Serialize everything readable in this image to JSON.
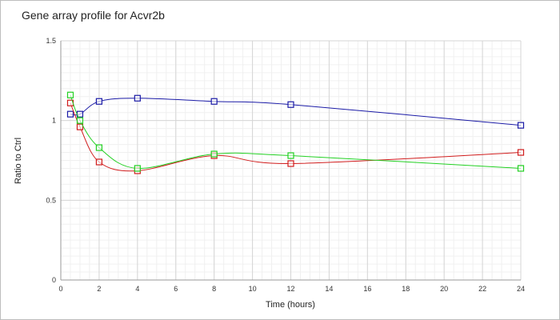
{
  "chart_data": {
    "type": "line",
    "title": "Gene array profile for Acvr2b",
    "xlabel": "Time (hours)",
    "ylabel": "Ratio to Ctrl",
    "xlim": [
      0,
      24
    ],
    "ylim": [
      0,
      1.5
    ],
    "x_ticks": [
      "0",
      "2",
      "4",
      "6",
      "8",
      "10",
      "12",
      "14",
      "16",
      "18",
      "20",
      "22",
      "24"
    ],
    "y_ticks": [
      "0",
      "0.5",
      "1",
      "1.5"
    ],
    "grid": true,
    "series": [
      {
        "color": "#1a1aa6",
        "points": [
          [
            0.5,
            1.04
          ],
          [
            1,
            1.04
          ],
          [
            2,
            1.12
          ],
          [
            4,
            1.14
          ],
          [
            8,
            1.12
          ],
          [
            12,
            1.1
          ],
          [
            24,
            0.97
          ]
        ]
      },
      {
        "color": "#d01c1c",
        "points": [
          [
            0.5,
            1.11
          ],
          [
            1,
            0.96
          ],
          [
            2,
            0.74
          ],
          [
            4,
            0.685
          ],
          [
            8,
            0.78
          ],
          [
            12,
            0.73
          ],
          [
            24,
            0.8
          ]
        ]
      },
      {
        "color": "#22d022",
        "points": [
          [
            0.5,
            1.16
          ],
          [
            1,
            1.0
          ],
          [
            2,
            0.83
          ],
          [
            4,
            0.7
          ],
          [
            8,
            0.79
          ],
          [
            12,
            0.78
          ],
          [
            24,
            0.7
          ]
        ]
      }
    ]
  }
}
